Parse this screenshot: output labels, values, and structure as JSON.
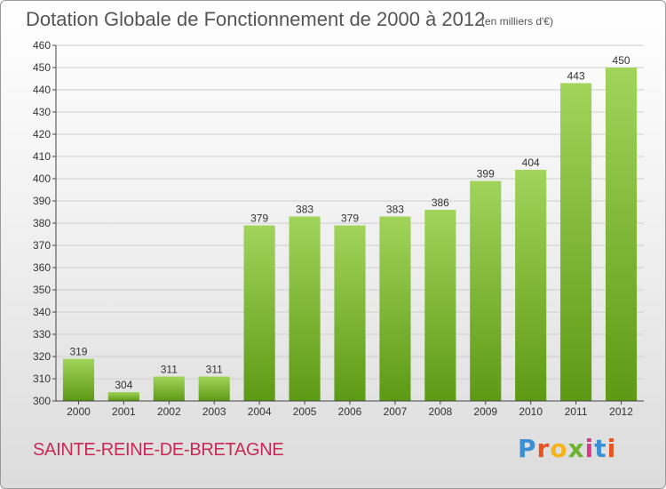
{
  "header": {
    "title": "Dotation Globale de Fonctionnement de 2000 à 2012",
    "unit": "(en milliers d'€)"
  },
  "footer": {
    "commune": "SAINTE-REINE-DE-BRETAGNE",
    "logo": "Proxiti",
    "logo_colors": [
      "#3a8fd6",
      "#e8541f",
      "#f3b51b",
      "#6bb42c",
      "#d93a8a",
      "#3a8fd6",
      "#e8541f"
    ]
  },
  "colors": {
    "bar_light": "#a2d45c",
    "bar_dark": "#5d9a14",
    "grid": "#cfcfcf",
    "axis": "#444444",
    "text": "#333333"
  },
  "chart_data": {
    "type": "bar",
    "categories": [
      "2000",
      "2001",
      "2002",
      "2003",
      "2004",
      "2005",
      "2006",
      "2007",
      "2008",
      "2009",
      "2010",
      "2011",
      "2012"
    ],
    "values": [
      319,
      304,
      311,
      311,
      379,
      383,
      379,
      383,
      386,
      399,
      404,
      443,
      450
    ],
    "ylim": [
      300,
      460
    ],
    "yticks": [
      300,
      310,
      320,
      330,
      340,
      350,
      360,
      370,
      380,
      390,
      400,
      410,
      420,
      430,
      440,
      450,
      460
    ],
    "grid": true
  }
}
